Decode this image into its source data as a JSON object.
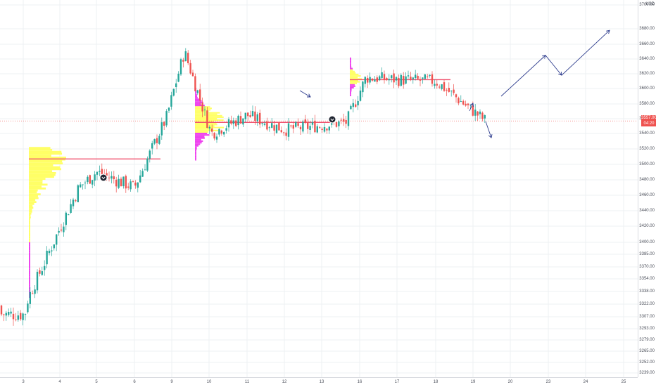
{
  "axis": {
    "currency": "USD",
    "price_ticks": [
      3700,
      3680,
      3660,
      3640,
      3620,
      3600,
      3580,
      3560,
      3540,
      3520,
      3500,
      3480,
      3460,
      3440,
      3420,
      3400,
      3385,
      3370,
      3354,
      3338,
      3322,
      3307,
      3293,
      3279,
      3265,
      3252,
      3239
    ],
    "price_tick_labels": [
      "3700.00",
      "3680.00",
      "3660.00",
      "3640.00",
      "3620.00",
      "3600.00",
      "3580.00",
      "3560.00",
      "3540.00",
      "3520.00",
      "3500.00",
      "3480.00",
      "3460.00",
      "3440.00",
      "3420.00",
      "3400.00",
      "3385.00",
      "3370.00",
      "3354.00",
      "3338.00",
      "3322.00",
      "3307.00",
      "3293.00",
      "3279.00",
      "3265.00",
      "3252.00",
      "3239.00"
    ],
    "time_ticks": [
      "3",
      "4",
      "5",
      "6",
      "9",
      "10",
      "11",
      "12",
      "13",
      "16",
      "17",
      "18",
      "19",
      "20",
      "23",
      "24",
      "25"
    ]
  },
  "current_price": {
    "price": "3557.00",
    "countdown": "04:20"
  },
  "colors": {
    "up": "#26a69a",
    "down": "#ef5350",
    "profile_value_area": "#ffff66",
    "profile_outside": "#ee44ee",
    "poc_line": "#f0506e",
    "projection": "#2b3a8c",
    "grid": "#eef0f3"
  },
  "chart_data": {
    "type": "candlestick",
    "instrument_currency": "USD",
    "x_tick_labels": [
      "3",
      "4",
      "5",
      "6",
      "9",
      "10",
      "11",
      "12",
      "13",
      "16",
      "17",
      "18",
      "19",
      "20",
      "23",
      "24",
      "25"
    ],
    "price_range": [
      3230,
      3710
    ],
    "trend_waypoints": [
      {
        "day": "3",
        "price": 3300
      },
      {
        "day": "4",
        "price": 3330
      },
      {
        "day": "4",
        "price": 3470
      },
      {
        "day": "5",
        "price": 3490
      },
      {
        "day": "6",
        "price": 3470
      },
      {
        "day": "9",
        "price": 3560
      },
      {
        "day": "9",
        "price": 3650
      },
      {
        "day": "10",
        "price": 3540
      },
      {
        "day": "11",
        "price": 3565
      },
      {
        "day": "12",
        "price": 3545
      },
      {
        "day": "13",
        "price": 3555
      },
      {
        "day": "16",
        "price": 3615
      },
      {
        "day": "17",
        "price": 3612
      },
      {
        "day": "18",
        "price": 3610
      },
      {
        "day": "19",
        "price": 3557
      }
    ],
    "volume_profiles": [
      {
        "from_day": "3",
        "to_day": "6",
        "poc_price": 3507,
        "value_area": [
          3400,
          3520
        ],
        "range": [
          3330,
          3520
        ]
      },
      {
        "from_day": "9",
        "to_day": "10",
        "poc_price": 3555,
        "value_area": [
          3540,
          3575
        ],
        "range": [
          3505,
          3600
        ]
      },
      {
        "from_day": "13",
        "to_day": "17",
        "poc_price": 3612,
        "value_area": [
          3605,
          3625
        ],
        "range": [
          3590,
          3640
        ]
      }
    ],
    "projection_waypoints": [
      {
        "day": "20",
        "price": 3590
      },
      {
        "day": "23",
        "price": 3645
      },
      {
        "day": "23",
        "price": 3618
      },
      {
        "day": "25",
        "price": 3678
      }
    ]
  }
}
